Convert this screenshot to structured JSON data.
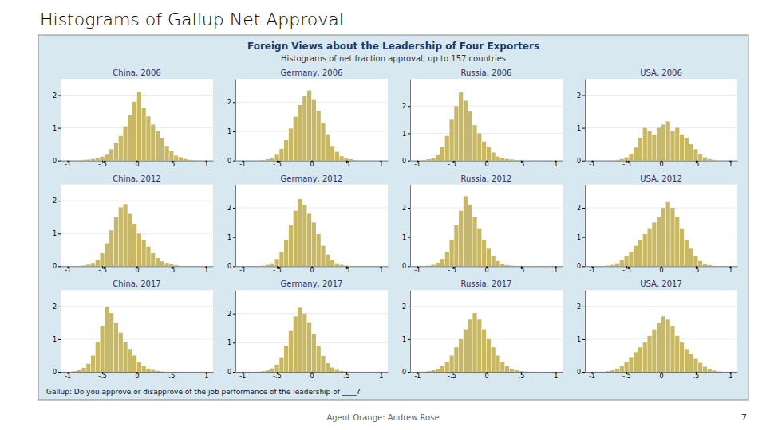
{
  "title": "Histograms of Gallup Net Approval",
  "subtitle": "Foreign Views about the Leadership of Four Exporters",
  "annotations": [
    "Histograms of net fraction approval, up to 157 countries",
    "Gallup: Do you approve or disapprove of the job performance of the leadership of ____?",
    "Agent Orange: Andrew Rose",
    "7"
  ],
  "chart_data": [
    {
      "type": "histogram",
      "title": "China, 2006",
      "color": "#C8B864",
      "grid": true,
      "bins": [
        -1,
        -0.9333333333333333,
        -0.8666666666666667,
        -0.8,
        -0.7333333333333333,
        -0.6666666666666667,
        -0.6,
        -0.5333333333333333,
        -0.4666666666666667,
        -0.4,
        -0.3333333333333333,
        -0.2666666666666667,
        -0.2,
        -0.1333333333333333,
        -0.0666666666666667,
        0,
        0.0666666666666667,
        0.1333333333333333,
        0.2,
        0.2666666666666667,
        0.3333333333333333,
        0.4,
        0.4666666666666667,
        0.5333333333333333,
        0.6,
        0.6666666666666667,
        0.7333333333333333,
        0.8,
        0.8666666666666667,
        0.9333333333333333,
        1
      ],
      "values": [
        0,
        0,
        0,
        0.02,
        0.03,
        0.05,
        0.08,
        0.12,
        0.18,
        0.35,
        0.55,
        0.75,
        1.05,
        1.4,
        1.8,
        2.1,
        1.6,
        1.35,
        1.1,
        0.9,
        0.7,
        0.45,
        0.3,
        0.15,
        0.1,
        0.05,
        0.02,
        0.01,
        0,
        0
      ],
      "xlim": [
        -1.1,
        1.1
      ],
      "xticks": [
        -1,
        {
          "value": -0.5,
          "label": "-.5"
        },
        0,
        {
          "value": 0.5,
          "label": ".5"
        },
        1
      ],
      "ylim": [
        0,
        2.5
      ],
      "yticks": [
        0,
        1,
        2
      ]
    },
    {
      "type": "histogram",
      "title": "Germany, 2006",
      "color": "#C8B864",
      "grid": true,
      "bins": [
        -1,
        -0.9333333333333333,
        -0.8666666666666667,
        -0.8,
        -0.7333333333333333,
        -0.6666666666666667,
        -0.6,
        -0.5333333333333333,
        -0.4666666666666667,
        -0.4,
        -0.3333333333333333,
        -0.2666666666666667,
        -0.2,
        -0.1333333333333333,
        -0.0666666666666667,
        0,
        0.0666666666666667,
        0.1333333333333333,
        0.2,
        0.2666666666666667,
        0.3333333333333333,
        0.4,
        0.4666666666666667,
        0.5333333333333333,
        0.6,
        0.6666666666666667,
        0.7333333333333333,
        0.8,
        0.8666666666666667,
        0.9333333333333333,
        1
      ],
      "values": [
        0,
        0,
        0,
        0,
        0.02,
        0.05,
        0.1,
        0.2,
        0.4,
        0.7,
        1.1,
        1.5,
        1.9,
        2.2,
        2.4,
        2.1,
        1.7,
        1.3,
        0.9,
        0.5,
        0.3,
        0.15,
        0.08,
        0.05,
        0.02,
        0,
        0,
        0,
        0,
        0
      ],
      "xlim": [
        -1.1,
        1.1
      ],
      "xticks": [
        -1,
        {
          "value": -0.5,
          "label": "-.5"
        },
        0,
        {
          "value": 0.5,
          "label": ".5"
        },
        1
      ],
      "ylim": [
        0,
        2.8
      ],
      "yticks": [
        0,
        1,
        2
      ]
    },
    {
      "type": "histogram",
      "title": "Russia, 2006",
      "color": "#C8B864",
      "grid": true,
      "bins": [
        -1,
        -0.9333333333333333,
        -0.8666666666666667,
        -0.8,
        -0.7333333333333333,
        -0.6666666666666667,
        -0.6,
        -0.5333333333333333,
        -0.4666666666666667,
        -0.4,
        -0.3333333333333333,
        -0.2666666666666667,
        -0.2,
        -0.1333333333333333,
        -0.0666666666666667,
        0,
        0.0666666666666667,
        0.1333333333333333,
        0.2,
        0.2666666666666667,
        0.3333333333333333,
        0.4,
        0.4666666666666667,
        0.5333333333333333,
        0.6,
        0.6666666666666667,
        0.7333333333333333,
        0.8,
        0.8666666666666667,
        0.9333333333333333,
        1
      ],
      "values": [
        0,
        0.02,
        0.05,
        0.1,
        0.2,
        0.5,
        0.9,
        1.5,
        2.0,
        2.5,
        2.2,
        1.8,
        1.3,
        1.0,
        0.7,
        0.5,
        0.3,
        0.15,
        0.1,
        0.06,
        0.04,
        0.02,
        0.01,
        0,
        0,
        0,
        0,
        0,
        0,
        0
      ],
      "xlim": [
        -1.1,
        1.1
      ],
      "xticks": [
        -1,
        {
          "value": -0.5,
          "label": "-.5"
        },
        0,
        {
          "value": 0.5,
          "label": ".5"
        },
        1
      ],
      "ylim": [
        0,
        3.0
      ],
      "yticks": [
        0,
        1,
        2
      ]
    },
    {
      "type": "histogram",
      "title": "USA, 2006",
      "color": "#C8B864",
      "grid": true,
      "bins": [
        -1,
        -0.9333333333333333,
        -0.8666666666666667,
        -0.8,
        -0.7333333333333333,
        -0.6666666666666667,
        -0.6,
        -0.5333333333333333,
        -0.4666666666666667,
        -0.4,
        -0.3333333333333333,
        -0.2666666666666667,
        -0.2,
        -0.1333333333333333,
        -0.0666666666666667,
        0,
        0.0666666666666667,
        0.1333333333333333,
        0.2,
        0.2666666666666667,
        0.3333333333333333,
        0.4,
        0.4666666666666667,
        0.5333333333333333,
        0.6,
        0.6666666666666667,
        0.7333333333333333,
        0.8,
        0.8666666666666667,
        0.9333333333333333,
        1
      ],
      "values": [
        0,
        0,
        0,
        0,
        0,
        0.02,
        0.05,
        0.1,
        0.2,
        0.4,
        0.7,
        1.0,
        0.9,
        0.8,
        1.0,
        1.1,
        1.2,
        0.9,
        1.0,
        0.8,
        0.7,
        0.5,
        0.35,
        0.2,
        0.1,
        0.05,
        0.02,
        0,
        0,
        0
      ],
      "xlim": [
        -1.1,
        1.1
      ],
      "xticks": [
        -1,
        {
          "value": -0.5,
          "label": "-.5"
        },
        0,
        {
          "value": 0.5,
          "label": ".5"
        },
        1
      ],
      "ylim": [
        0,
        2.5
      ],
      "yticks": [
        0,
        1,
        2
      ]
    },
    {
      "type": "histogram",
      "title": "China, 2012",
      "color": "#C8B864",
      "grid": true,
      "bins": [
        -1,
        -0.9333333333333333,
        -0.8666666666666667,
        -0.8,
        -0.7333333333333333,
        -0.6666666666666667,
        -0.6,
        -0.5333333333333333,
        -0.4666666666666667,
        -0.4,
        -0.3333333333333333,
        -0.2666666666666667,
        -0.2,
        -0.1333333333333333,
        -0.0666666666666667,
        0,
        0.0666666666666667,
        0.1333333333333333,
        0.2,
        0.2666666666666667,
        0.3333333333333333,
        0.4,
        0.4666666666666667,
        0.5333333333333333,
        0.6,
        0.6666666666666667,
        0.7333333333333333,
        0.8,
        0.8666666666666667,
        0.9333333333333333,
        1
      ],
      "values": [
        0,
        0,
        0,
        0.02,
        0.05,
        0.1,
        0.2,
        0.4,
        0.7,
        1.1,
        1.5,
        1.8,
        1.9,
        1.6,
        1.3,
        1.0,
        0.8,
        0.6,
        0.4,
        0.25,
        0.15,
        0.1,
        0.06,
        0.03,
        0.01,
        0,
        0,
        0,
        0,
        0
      ],
      "xlim": [
        -1.1,
        1.1
      ],
      "xticks": [
        -1,
        {
          "value": -0.5,
          "label": "-.5"
        },
        0,
        {
          "value": 0.5,
          "label": ".5"
        },
        1
      ],
      "ylim": [
        0,
        2.5
      ],
      "yticks": [
        0,
        1,
        2
      ]
    },
    {
      "type": "histogram",
      "title": "Germany, 2012",
      "color": "#C8B864",
      "grid": true,
      "bins": [
        -1,
        -0.9333333333333333,
        -0.8666666666666667,
        -0.8,
        -0.7333333333333333,
        -0.6666666666666667,
        -0.6,
        -0.5333333333333333,
        -0.4666666666666667,
        -0.4,
        -0.3333333333333333,
        -0.2666666666666667,
        -0.2,
        -0.1333333333333333,
        -0.0666666666666667,
        0,
        0.0666666666666667,
        0.1333333333333333,
        0.2,
        0.2666666666666667,
        0.3333333333333333,
        0.4,
        0.4666666666666667,
        0.5333333333333333,
        0.6,
        0.6666666666666667,
        0.7333333333333333,
        0.8,
        0.8666666666666667,
        0.9333333333333333,
        1
      ],
      "values": [
        0,
        0,
        0,
        0,
        0.02,
        0.05,
        0.1,
        0.25,
        0.5,
        0.9,
        1.4,
        1.9,
        2.3,
        2.1,
        1.8,
        1.5,
        1.1,
        0.7,
        0.4,
        0.2,
        0.1,
        0.05,
        0.02,
        0,
        0,
        0,
        0,
        0,
        0,
        0
      ],
      "xlim": [
        -1.1,
        1.1
      ],
      "xticks": [
        -1,
        {
          "value": -0.5,
          "label": "-.5"
        },
        0,
        {
          "value": 0.5,
          "label": ".5"
        },
        1
      ],
      "ylim": [
        0,
        2.8
      ],
      "yticks": [
        0,
        1,
        2
      ]
    },
    {
      "type": "histogram",
      "title": "Russia, 2012",
      "color": "#C8B864",
      "grid": true,
      "bins": [
        -1,
        -0.9333333333333333,
        -0.8666666666666667,
        -0.8,
        -0.7333333333333333,
        -0.6666666666666667,
        -0.6,
        -0.5333333333333333,
        -0.4666666666666667,
        -0.4,
        -0.3333333333333333,
        -0.2666666666666667,
        -0.2,
        -0.1333333333333333,
        -0.0666666666666667,
        0,
        0.0666666666666667,
        0.1333333333333333,
        0.2,
        0.2666666666666667,
        0.3333333333333333,
        0.4,
        0.4666666666666667,
        0.5333333333333333,
        0.6,
        0.6666666666666667,
        0.7333333333333333,
        0.8,
        0.8666666666666667,
        0.9333333333333333,
        1
      ],
      "values": [
        0,
        0,
        0.02,
        0.05,
        0.12,
        0.25,
        0.5,
        0.9,
        1.4,
        1.9,
        2.4,
        2.1,
        1.7,
        1.3,
        0.9,
        0.6,
        0.35,
        0.18,
        0.09,
        0.04,
        0.02,
        0.01,
        0,
        0,
        0,
        0,
        0,
        0,
        0,
        0
      ],
      "xlim": [
        -1.1,
        1.1
      ],
      "xticks": [
        -1,
        {
          "value": -0.5,
          "label": "-.5"
        },
        0,
        {
          "value": 0.5,
          "label": ".5"
        },
        1
      ],
      "ylim": [
        0,
        2.8
      ],
      "yticks": [
        0,
        1,
        2
      ]
    },
    {
      "type": "histogram",
      "title": "USA, 2012",
      "color": "#C8B864",
      "grid": true,
      "bins": [
        -1,
        -0.9333333333333333,
        -0.8666666666666667,
        -0.8,
        -0.7333333333333333,
        -0.6666666666666667,
        -0.6,
        -0.5333333333333333,
        -0.4666666666666667,
        -0.4,
        -0.3333333333333333,
        -0.2666666666666667,
        -0.2,
        -0.1333333333333333,
        -0.0666666666666667,
        0,
        0.0666666666666667,
        0.1333333333333333,
        0.2,
        0.2666666666666667,
        0.3333333333333333,
        0.4,
        0.4666666666666667,
        0.5333333333333333,
        0.6,
        0.6666666666666667,
        0.7333333333333333,
        0.8,
        0.8666666666666667,
        0.9333333333333333,
        1
      ],
      "values": [
        0,
        0,
        0,
        0.02,
        0.05,
        0.1,
        0.2,
        0.35,
        0.5,
        0.7,
        0.9,
        1.1,
        1.3,
        1.5,
        1.7,
        2.0,
        2.2,
        2.0,
        1.7,
        1.3,
        0.9,
        0.6,
        0.35,
        0.18,
        0.09,
        0.04,
        0.01,
        0,
        0,
        0
      ],
      "xlim": [
        -1.1,
        1.1
      ],
      "xticks": [
        -1,
        {
          "value": -0.5,
          "label": "-.5"
        },
        0,
        {
          "value": 0.5,
          "label": ".5"
        },
        1
      ],
      "ylim": [
        0,
        2.8
      ],
      "yticks": [
        0,
        1,
        2
      ]
    },
    {
      "type": "histogram",
      "title": "China, 2017",
      "color": "#C8B864",
      "grid": true,
      "bins": [
        -1,
        -0.9333333333333333,
        -0.8666666666666667,
        -0.8,
        -0.7333333333333333,
        -0.6666666666666667,
        -0.6,
        -0.5333333333333333,
        -0.4666666666666667,
        -0.4,
        -0.3333333333333333,
        -0.2666666666666667,
        -0.2,
        -0.1333333333333333,
        -0.0666666666666667,
        0,
        0.0666666666666667,
        0.1333333333333333,
        0.2,
        0.2666666666666667,
        0.3333333333333333,
        0.4,
        0.4666666666666667,
        0.5333333333333333,
        0.6,
        0.6666666666666667,
        0.7333333333333333,
        0.8,
        0.8666666666666667,
        0.9333333333333333,
        1
      ],
      "values": [
        0,
        0.02,
        0.05,
        0.12,
        0.25,
        0.5,
        0.9,
        1.4,
        2.0,
        1.8,
        1.5,
        1.2,
        0.9,
        0.7,
        0.5,
        0.3,
        0.18,
        0.1,
        0.06,
        0.03,
        0.01,
        0,
        0,
        0,
        0,
        0,
        0,
        0,
        0,
        0
      ],
      "xlim": [
        -1.1,
        1.1
      ],
      "xticks": [
        -1,
        {
          "value": -0.5,
          "label": "-.5"
        },
        0,
        {
          "value": 0.5,
          "label": ".5"
        },
        1
      ],
      "ylim": [
        0,
        2.5
      ],
      "yticks": [
        0,
        1,
        2
      ]
    },
    {
      "type": "histogram",
      "title": "Germany, 2017",
      "color": "#C8B864",
      "grid": true,
      "bins": [
        -1,
        -0.9333333333333333,
        -0.8666666666666667,
        -0.8,
        -0.7333333333333333,
        -0.6666666666666667,
        -0.6,
        -0.5333333333333333,
        -0.4666666666666667,
        -0.4,
        -0.3333333333333333,
        -0.2666666666666667,
        -0.2,
        -0.1333333333333333,
        -0.0666666666666667,
        0,
        0.0666666666666667,
        0.1333333333333333,
        0.2,
        0.2666666666666667,
        0.3333333333333333,
        0.4,
        0.4666666666666667,
        0.5333333333333333,
        0.6,
        0.6666666666666667,
        0.7333333333333333,
        0.8,
        0.8666666666666667,
        0.9333333333333333,
        1
      ],
      "values": [
        0,
        0,
        0,
        0,
        0.02,
        0.05,
        0.12,
        0.25,
        0.5,
        0.9,
        1.4,
        1.9,
        2.2,
        2.0,
        1.7,
        1.3,
        0.9,
        0.55,
        0.3,
        0.15,
        0.07,
        0.03,
        0.01,
        0,
        0,
        0,
        0,
        0,
        0,
        0
      ],
      "xlim": [
        -1.1,
        1.1
      ],
      "xticks": [
        -1,
        {
          "value": -0.5,
          "label": "-.5"
        },
        0,
        {
          "value": 0.5,
          "label": ".5"
        },
        1
      ],
      "ylim": [
        0,
        2.8
      ],
      "yticks": [
        0,
        1,
        2
      ]
    },
    {
      "type": "histogram",
      "title": "Russia, 2017",
      "color": "#C8B864",
      "grid": true,
      "bins": [
        -1,
        -0.9333333333333333,
        -0.8666666666666667,
        -0.8,
        -0.7333333333333333,
        -0.6666666666666667,
        -0.6,
        -0.5333333333333333,
        -0.4666666666666667,
        -0.4,
        -0.3333333333333333,
        -0.2666666666666667,
        -0.2,
        -0.1333333333333333,
        -0.0666666666666667,
        0,
        0.0666666666666667,
        0.1333333333333333,
        0.2,
        0.2666666666666667,
        0.3333333333333333,
        0.4,
        0.4666666666666667,
        0.5333333333333333,
        0.6,
        0.6666666666666667,
        0.7333333333333333,
        0.8,
        0.8666666666666667,
        0.9333333333333333,
        1
      ],
      "values": [
        0,
        0,
        0.02,
        0.05,
        0.1,
        0.18,
        0.3,
        0.5,
        0.75,
        1.0,
        1.3,
        1.6,
        1.8,
        1.6,
        1.3,
        1.0,
        0.75,
        0.5,
        0.3,
        0.18,
        0.1,
        0.05,
        0.02,
        0.01,
        0,
        0,
        0,
        0,
        0,
        0
      ],
      "xlim": [
        -1.1,
        1.1
      ],
      "xticks": [
        -1,
        {
          "value": -0.5,
          "label": "-.5"
        },
        0,
        {
          "value": 0.5,
          "label": ".5"
        },
        1
      ],
      "ylim": [
        0,
        2.5
      ],
      "yticks": [
        0,
        1,
        2
      ]
    },
    {
      "type": "histogram",
      "title": "USA, 2017",
      "color": "#C8B864",
      "grid": true,
      "bins": [
        -1,
        -0.9333333333333333,
        -0.8666666666666667,
        -0.8,
        -0.7333333333333333,
        -0.6666666666666667,
        -0.6,
        -0.5333333333333333,
        -0.4666666666666667,
        -0.4,
        -0.3333333333333333,
        -0.2666666666666667,
        -0.2,
        -0.1333333333333333,
        -0.0666666666666667,
        0,
        0.0666666666666667,
        0.1333333333333333,
        0.2,
        0.2666666666666667,
        0.3333333333333333,
        0.4,
        0.4666666666666667,
        0.5333333333333333,
        0.6,
        0.6666666666666667,
        0.7333333333333333,
        0.8,
        0.8666666666666667,
        0.9333333333333333,
        1
      ],
      "values": [
        0,
        0,
        0,
        0.02,
        0.05,
        0.1,
        0.18,
        0.3,
        0.45,
        0.6,
        0.75,
        0.9,
        1.1,
        1.3,
        1.5,
        1.7,
        1.6,
        1.4,
        1.1,
        0.9,
        0.7,
        0.55,
        0.4,
        0.28,
        0.16,
        0.09,
        0.04,
        0.01,
        0,
        0
      ],
      "xlim": [
        -1.1,
        1.1
      ],
      "xticks": [
        -1,
        {
          "value": -0.5,
          "label": "-.5"
        },
        0,
        {
          "value": 0.5,
          "label": ".5"
        },
        1
      ],
      "ylim": [
        0,
        2.5
      ],
      "yticks": [
        0,
        1,
        2
      ]
    }
  ]
}
